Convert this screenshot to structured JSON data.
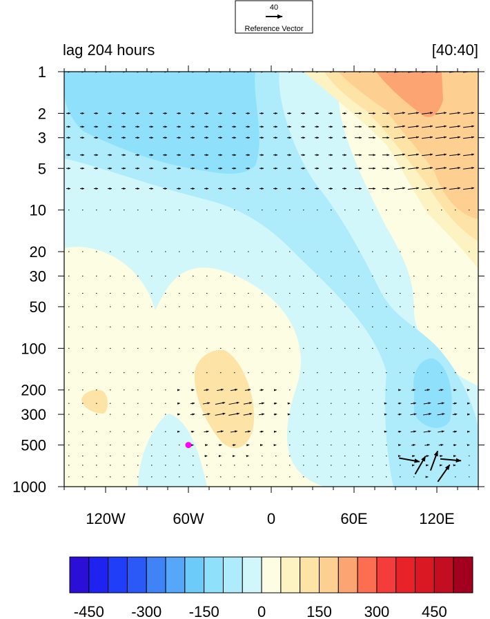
{
  "chart_data": {
    "type": "contour",
    "title_left": "lag 204 hours",
    "title_right": "[40:40]",
    "reference_vector": {
      "label": "Reference Vector",
      "value": "40"
    },
    "x": {
      "min": -150,
      "max": 150,
      "ticks": [
        -120,
        -60,
        0,
        60,
        120
      ],
      "tick_labels": [
        "120W",
        "60W",
        "0",
        "60E",
        "120E"
      ]
    },
    "y": {
      "scale": "log",
      "min": 1,
      "max": 1000,
      "reversed": true,
      "ticks": [
        1,
        2,
        3,
        5,
        10,
        20,
        30,
        50,
        100,
        200,
        300,
        500,
        1000
      ],
      "tick_labels": [
        "1",
        "2",
        "3",
        "5",
        "10",
        "20",
        "30",
        "50",
        "100",
        "200",
        "300",
        "500",
        "1000"
      ]
    },
    "colorbar": {
      "levels": [
        -450,
        -400,
        -350,
        -300,
        -250,
        -200,
        -150,
        -100,
        -50,
        0,
        50,
        100,
        150,
        200,
        250,
        300,
        350,
        400,
        450,
        500,
        550
      ],
      "colors": [
        "#2b0fd6",
        "#1e23f0",
        "#203ef7",
        "#2a59f7",
        "#3f83f7",
        "#56a6f9",
        "#6ccbf9",
        "#8fe0fb",
        "#aeecfb",
        "#d2f7fb",
        "#fdfde3",
        "#fdf2c1",
        "#fde3a5",
        "#fdcf90",
        "#fca472",
        "#fc6e4f",
        "#f43c3a",
        "#e9222a",
        "#d91824",
        "#c30e22",
        "#a3001f"
      ],
      "tick_values": [
        -450,
        -300,
        -150,
        0,
        150,
        300,
        450
      ],
      "tick_labels": [
        "-450",
        "-300",
        "-150",
        "0",
        "150",
        "300",
        "450"
      ]
    },
    "marker": {
      "lon": -60,
      "pressure": 500,
      "color": "#ff00ff"
    },
    "colors": {
      "background_field": "#fdfde3",
      "neg1": "#d2f7fb",
      "neg2": "#aeecfb",
      "neg3": "#8fe0fb",
      "pos1": "#fdf2c1",
      "pos2": "#fde3a5",
      "pos3": "#fdcf90",
      "pos4": "#fca472"
    }
  }
}
